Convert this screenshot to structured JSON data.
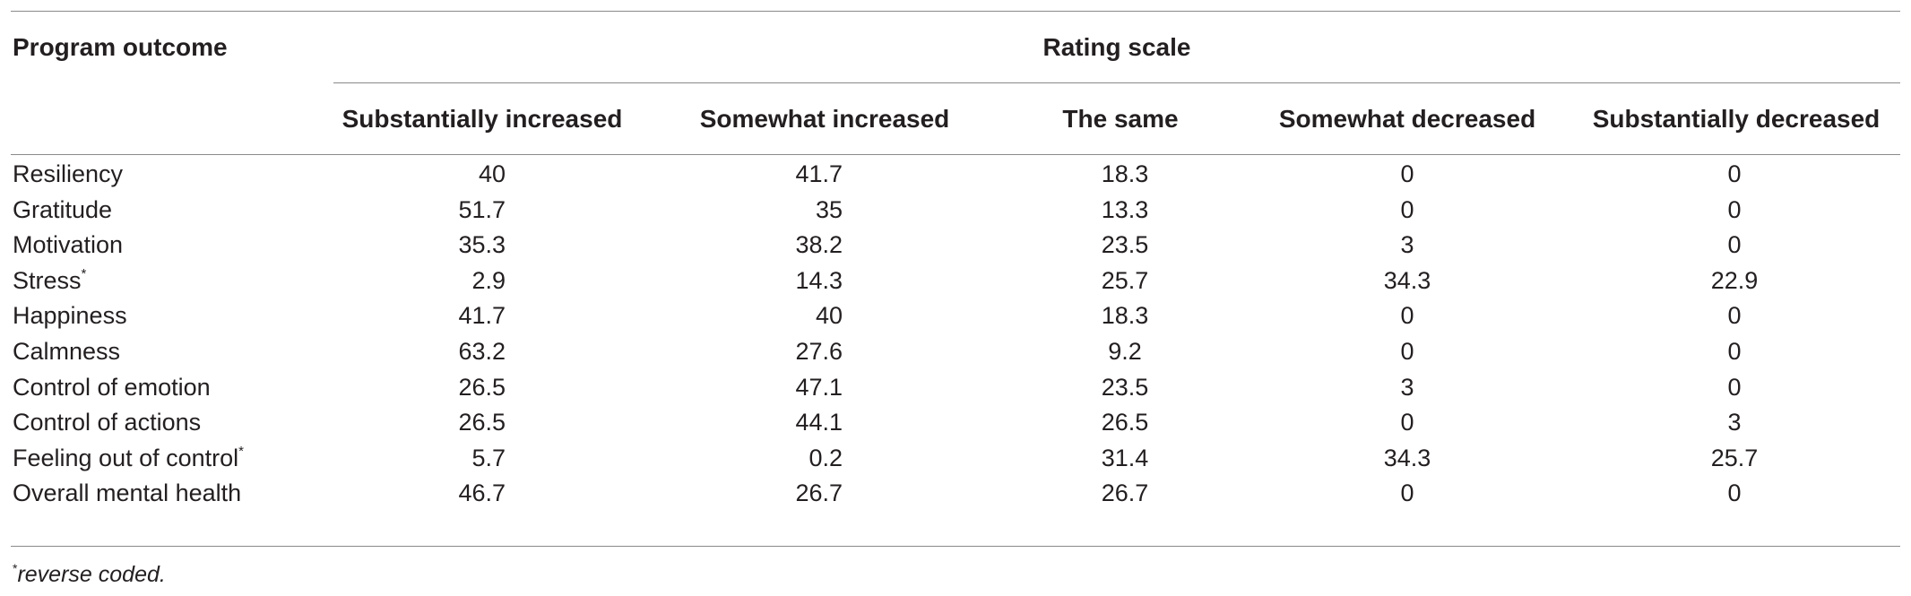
{
  "table": {
    "row_header": "Program outcome",
    "group_header": "Rating scale",
    "columns": [
      "Substantially increased",
      "Somewhat increased",
      "The same",
      "Somewhat decreased",
      "Substantially decreased"
    ],
    "rows": [
      {
        "label": "Resiliency",
        "mark": "",
        "values": [
          "40",
          "41.7",
          "18.3",
          "0",
          "0"
        ]
      },
      {
        "label": "Gratitude",
        "mark": "",
        "values": [
          "51.7",
          "35",
          "13.3",
          "0",
          "0"
        ]
      },
      {
        "label": "Motivation",
        "mark": "",
        "values": [
          "35.3",
          "38.2",
          "23.5",
          "3",
          "0"
        ]
      },
      {
        "label": "Stress",
        "mark": "*",
        "values": [
          "2.9",
          "14.3",
          "25.7",
          "34.3",
          "22.9"
        ]
      },
      {
        "label": "Happiness",
        "mark": "",
        "values": [
          "41.7",
          "40",
          "18.3",
          "0",
          "0"
        ]
      },
      {
        "label": "Calmness",
        "mark": "",
        "values": [
          "63.2",
          "27.6",
          "9.2",
          "0",
          "0"
        ]
      },
      {
        "label": "Control of emotion",
        "mark": "",
        "values": [
          "26.5",
          "47.1",
          "23.5",
          "3",
          "0"
        ]
      },
      {
        "label": "Control of actions",
        "mark": "",
        "values": [
          "26.5",
          "44.1",
          "26.5",
          "0",
          "3"
        ]
      },
      {
        "label": "Feeling out of control",
        "mark": "*",
        "values": [
          "5.7",
          "0.2",
          "31.4",
          "34.3",
          "25.7"
        ]
      },
      {
        "label": "Overall mental health",
        "mark": "",
        "values": [
          "46.7",
          "26.7",
          "26.7",
          "0",
          "0"
        ]
      }
    ]
  },
  "footnote": {
    "mark": "*",
    "text": "reverse coded."
  }
}
